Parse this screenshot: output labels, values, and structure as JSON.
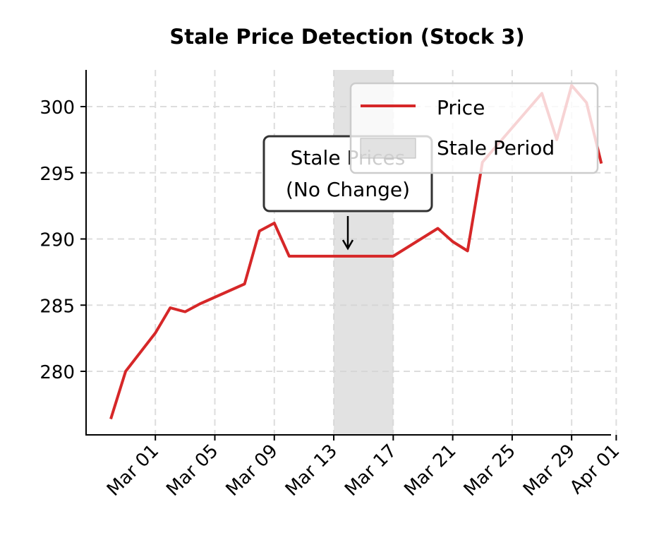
{
  "chart_data": {
    "type": "line",
    "title": "Stale Price Detection (Stock 3)",
    "xlabel": "",
    "ylabel": "",
    "x": [
      "2024-02-27",
      "2024-02-28",
      "2024-03-01",
      "2024-03-02",
      "2024-03-03",
      "2024-03-04",
      "2024-03-05",
      "2024-03-06",
      "2024-03-07",
      "2024-03-08",
      "2024-03-09",
      "2024-03-10",
      "2024-03-11",
      "2024-03-12",
      "2024-03-13",
      "2024-03-14",
      "2024-03-15",
      "2024-03-16",
      "2024-03-17",
      "2024-03-18",
      "2024-03-19",
      "2024-03-20",
      "2024-03-21",
      "2024-03-22",
      "2024-03-23",
      "2024-03-24",
      "2024-03-25",
      "2024-03-26",
      "2024-03-27",
      "2024-03-28",
      "2024-03-29",
      "2024-03-30",
      "2024-03-31"
    ],
    "series": [
      {
        "name": "Price",
        "color": "#d62728",
        "values": [
          276.4,
          280.0,
          282.9,
          284.8,
          284.5,
          285.1,
          285.6,
          286.1,
          286.6,
          290.6,
          291.2,
          288.7,
          288.7,
          288.7,
          288.7,
          288.7,
          288.7,
          288.7,
          288.7,
          289.4,
          290.1,
          290.8,
          289.8,
          289.1,
          295.8,
          297.1,
          298.4,
          299.7,
          301.0,
          297.5,
          301.6,
          300.3,
          295.7
        ]
      }
    ],
    "shaded_region": {
      "name": "Stale Period",
      "start": "2024-03-13",
      "end": "2024-03-17",
      "color": "#d3d3d3"
    },
    "annotation": {
      "text_line1": "Stale Prices",
      "text_line2": "(No Change)",
      "x": "2024-03-15",
      "y": 288.7
    },
    "xticks": [
      "2024-03-01",
      "2024-03-05",
      "2024-03-09",
      "2024-03-13",
      "2024-03-17",
      "2024-03-21",
      "2024-03-25",
      "2024-03-29",
      "2024-04-01"
    ],
    "xtick_labels": [
      "Mar 01",
      "Mar 05",
      "Mar 09",
      "Mar 13",
      "Mar 17",
      "Mar 21",
      "Mar 25",
      "Mar 29",
      "Apr 01"
    ],
    "yticks": [
      280,
      285,
      290,
      295,
      300
    ],
    "ytick_labels": [
      "280",
      "285",
      "290",
      "295",
      "300"
    ],
    "ylim": [
      275.6,
      302.6
    ],
    "xlim": [
      "2024-02-25",
      "2024-04-01"
    ],
    "grid": true,
    "legend": {
      "placement": "top-right",
      "entries": [
        "Price",
        "Stale Period"
      ]
    }
  }
}
